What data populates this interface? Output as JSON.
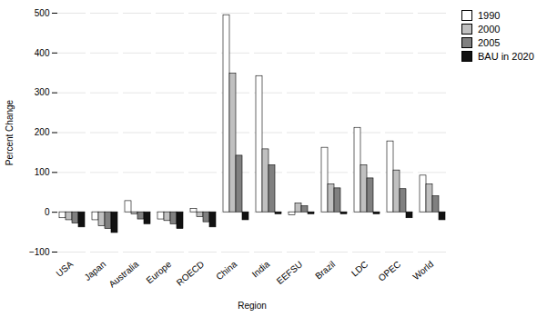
{
  "chart_data": {
    "type": "bar",
    "xlabel": "Region",
    "ylabel": "Percent Change",
    "categories": [
      "USA",
      "Japan",
      "Australia",
      "Europe",
      "ROECD",
      "China",
      "India",
      "EEFSU",
      "Brazil",
      "LDC",
      "OPEC",
      "World"
    ],
    "series": [
      {
        "name": "1990",
        "color": "#ffffff",
        "values": [
          -15,
          -20,
          28,
          -18,
          8,
          495,
          342,
          -8,
          162,
          212,
          178,
          92
        ]
      },
      {
        "name": "2000",
        "color": "#c0c0c0",
        "values": [
          -20,
          -35,
          -5,
          -22,
          -12,
          348,
          158,
          22,
          70,
          118,
          105,
          70
        ]
      },
      {
        "name": "2005",
        "color": "#808080",
        "values": [
          -28,
          -42,
          -18,
          -30,
          -25,
          142,
          118,
          15,
          60,
          85,
          58,
          40
        ]
      },
      {
        "name": "BAU in 2020",
        "color": "#111111",
        "values": [
          -38,
          -52,
          -30,
          -42,
          -38,
          -20,
          -5,
          -5,
          -5,
          -5,
          -15,
          -20
        ]
      }
    ],
    "ylim": [
      -100,
      500
    ],
    "yticks": [
      -100,
      0,
      100,
      200,
      300,
      400,
      500
    ],
    "grid": true,
    "legend": "right"
  }
}
